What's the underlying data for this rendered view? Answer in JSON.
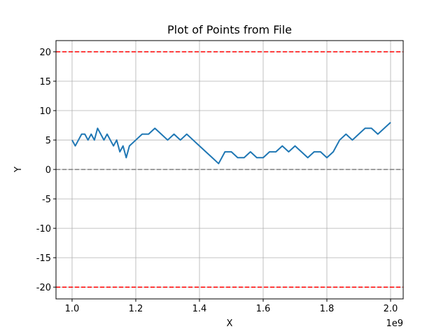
{
  "chart_data": {
    "type": "line",
    "title": "Plot of Points from File",
    "x_label": "X",
    "y_label": "Y",
    "x_offset_label": "1e9",
    "x": [
      1000000000,
      1010000000,
      1020000000,
      1030000000,
      1040000000,
      1050000000,
      1060000000,
      1070000000,
      1080000000,
      1090000000,
      1100000000,
      1110000000,
      1120000000,
      1130000000,
      1140000000,
      1150000000,
      1160000000,
      1170000000,
      1180000000,
      1200000000,
      1220000000,
      1240000000,
      1260000000,
      1280000000,
      1300000000,
      1320000000,
      1340000000,
      1360000000,
      1380000000,
      1400000000,
      1420000000,
      1440000000,
      1460000000,
      1480000000,
      1500000000,
      1520000000,
      1540000000,
      1560000000,
      1580000000,
      1600000000,
      1620000000,
      1640000000,
      1660000000,
      1680000000,
      1700000000,
      1720000000,
      1740000000,
      1760000000,
      1780000000,
      1800000000,
      1820000000,
      1840000000,
      1860000000,
      1880000000,
      1900000000,
      1920000000,
      1940000000,
      1960000000,
      1980000000,
      2000000000
    ],
    "series": [
      {
        "color": "#1f77b4",
        "values": [
          5,
          4,
          5,
          6,
          6,
          5,
          6,
          5,
          7,
          6,
          5,
          6,
          5,
          4,
          5,
          3,
          4,
          2,
          4,
          5,
          6,
          6,
          7,
          6,
          5,
          6,
          5,
          6,
          5,
          4,
          3,
          2,
          1,
          3,
          3,
          2,
          2,
          3,
          2,
          2,
          3,
          3,
          4,
          3,
          4,
          3,
          2,
          3,
          3,
          2,
          3,
          5,
          6,
          5,
          6,
          7,
          7,
          6,
          7,
          8
        ]
      }
    ],
    "xlim": [
      949500000,
      2039600000
    ],
    "ylim": [
      -22,
      21.9
    ],
    "xticks": [
      {
        "value": 1000000000,
        "label": "1.0"
      },
      {
        "value": 1200000000,
        "label": "1.2"
      },
      {
        "value": 1400000000,
        "label": "1.4"
      },
      {
        "value": 1600000000,
        "label": "1.6"
      },
      {
        "value": 1800000000,
        "label": "1.8"
      },
      {
        "value": 2000000000,
        "label": "2.0"
      }
    ],
    "yticks": [
      -20,
      -15,
      -10,
      -5,
      0,
      5,
      10,
      15,
      20
    ],
    "grid": true,
    "hlines": [
      {
        "y": 20,
        "color": "#ff0000"
      },
      {
        "y": -20,
        "color": "#ff0000"
      },
      {
        "y": 0,
        "color": "#808080"
      }
    ]
  }
}
